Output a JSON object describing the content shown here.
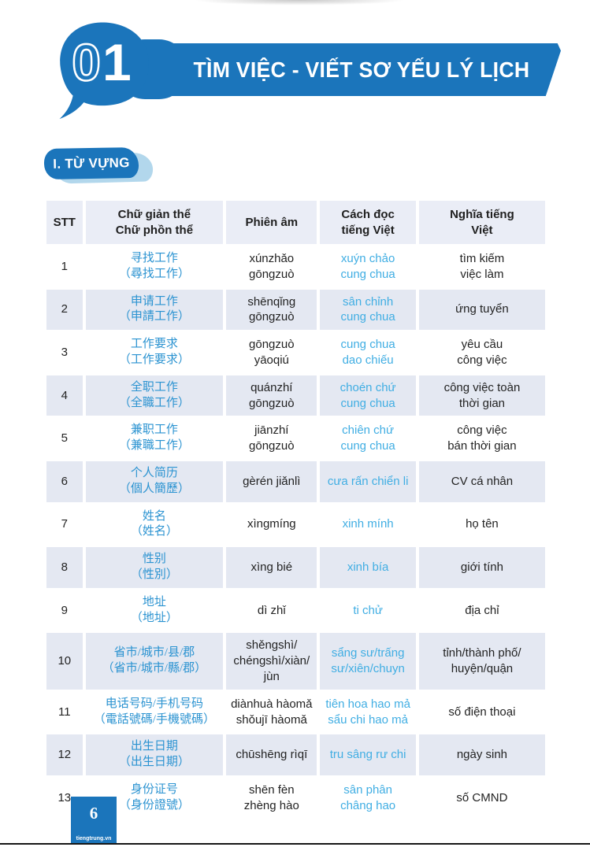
{
  "header": {
    "lesson_digits": [
      "0",
      "1"
    ],
    "title": "TÌM VIỆC - VIẾT SƠ YẾU LÝ LỊCH"
  },
  "section": {
    "label": "I. TỪ VỰNG"
  },
  "vocab_table": {
    "columns": [
      "STT",
      "Chữ giản thể\nChữ phồn thể",
      "Phiên âm",
      "Cách đọc\ntiếng Việt",
      "Nghĩa tiếng\nViệt"
    ],
    "rows": [
      {
        "stt": "1",
        "hanzi": "寻找工作\n（尋找工作）",
        "pinyin": "xúnzhǎo\ngōngzuò",
        "reading": "xuýn chảo\ncung chua",
        "meaning": "tìm kiếm\nviệc làm"
      },
      {
        "stt": "2",
        "hanzi": "申请工作\n（申請工作）",
        "pinyin": "shēnqǐng\ngōngzuò",
        "reading": "sân chỉnh\ncung chua",
        "meaning": "ứng tuyển"
      },
      {
        "stt": "3",
        "hanzi": "工作要求\n（工作要求）",
        "pinyin": "gōngzuò\nyāoqiú",
        "reading": "cung chua\ndao chiếu",
        "meaning": "yêu cầu\ncông việc"
      },
      {
        "stt": "4",
        "hanzi": "全职工作\n（全職工作）",
        "pinyin": "quánzhí\ngōngzuò",
        "reading": "choén chứ\ncung chua",
        "meaning": "công việc toàn\nthời gian"
      },
      {
        "stt": "5",
        "hanzi": "兼职工作\n（兼職工作）",
        "pinyin": "jiānzhí\ngōngzuò",
        "reading": "chiên chứ\ncung chua",
        "meaning": "công việc\nbán thời gian"
      },
      {
        "stt": "6",
        "hanzi": "个人简历\n（個人簡歷）",
        "pinyin": "gèrén jiǎnlì",
        "reading": "cưa rấn chiển li",
        "meaning": "CV cá nhân"
      },
      {
        "stt": "7",
        "hanzi": "姓名\n（姓名）",
        "pinyin": "xìngmíng",
        "reading": "xinh mính",
        "meaning": "họ tên"
      },
      {
        "stt": "8",
        "hanzi": "性别\n（性別）",
        "pinyin": "xìng bié",
        "reading": "xinh bía",
        "meaning": "giới tính"
      },
      {
        "stt": "9",
        "hanzi": "地址\n（地址）",
        "pinyin": "dì zhǐ",
        "reading": "ti chử",
        "meaning": "địa chỉ"
      },
      {
        "stt": "10",
        "hanzi": "省市/城市/县/郡\n（省市/城市/縣/郡）",
        "pinyin": "shěngshì/\nchéngshì/xiàn/\njùn",
        "reading": "sẩng sư/trấng\nsư/xiên/chuyn",
        "meaning": "tỉnh/thành phố/\nhuyện/quận"
      },
      {
        "stt": "11",
        "hanzi": "电话号码/手机号码\n（電話號碼/手機號碼）",
        "pinyin": "diànhuà hàomǎ\nshǒujī hàomǎ",
        "reading": "tiên hoa hao mả\nsẩu chi hao mả",
        "meaning": "số điện thoại"
      },
      {
        "stt": "12",
        "hanzi": "出生日期\n（出生日期）",
        "pinyin": "chūshēng rìqī",
        "reading": "tru sâng rư chi",
        "meaning": "ngày sinh"
      },
      {
        "stt": "13",
        "hanzi": "身份证号\n（身份證號）",
        "pinyin": "shēn fèn\nzhèng hào",
        "reading": "sân phân\nchâng hao",
        "meaning": "số CMND"
      }
    ]
  },
  "footer": {
    "page_number": "6",
    "site": "tiengtrung.vn"
  },
  "colors": {
    "primary_blue": "#1b75bb",
    "brush_shadow_blue": "#b2d7ec",
    "hanzi_blue": "#2b93d1",
    "reading_blue": "#41aee3",
    "table_header_bg": "#eaedf6",
    "alt_row_bg": "#e4e8f2",
    "text_dark": "#232323"
  }
}
